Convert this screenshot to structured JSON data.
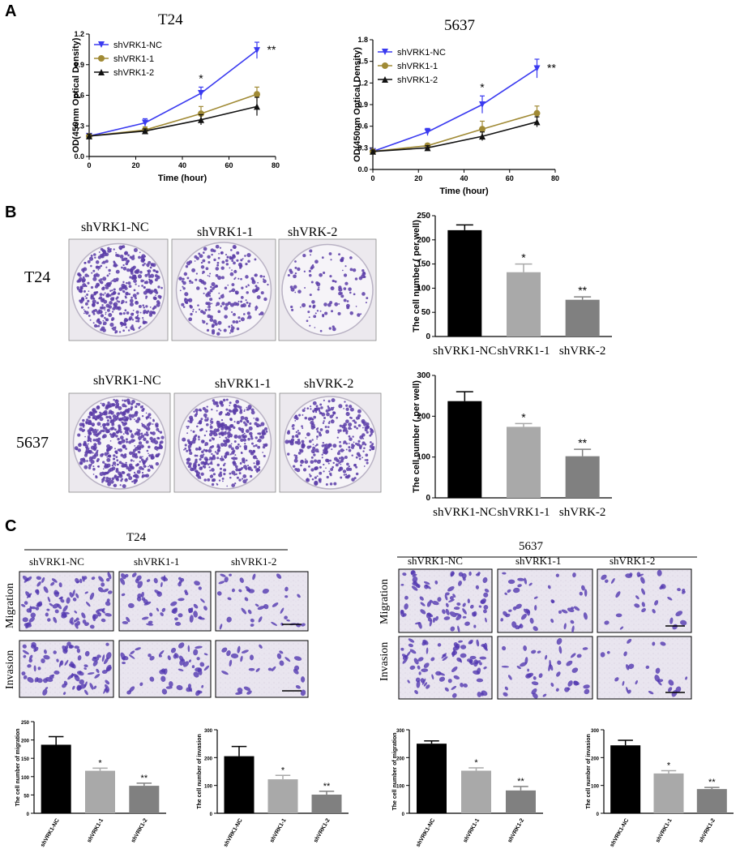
{
  "panels": {
    "a": {
      "letter": "A"
    },
    "b": {
      "letter": "B",
      "row_labels": [
        "T24",
        "5637"
      ],
      "image_labels": [
        [
          "shVRK1-NC",
          "shVRK1-1",
          "shVRK-2"
        ],
        [
          "shVRK1-NC",
          "shVRK1-1",
          "shVRK-2"
        ]
      ]
    },
    "c": {
      "letter": "C",
      "groups": [
        "T24",
        "5637"
      ],
      "image_labels": [
        "shVRK1-NC",
        "shVRK1-1",
        "shVRK1-2"
      ],
      "row_labels": [
        "Migration",
        "Invasion"
      ]
    }
  },
  "colors": {
    "nc": "#3a3af0",
    "sh1": "#a08a35",
    "sh2": "#111111",
    "bar_black": "#000000",
    "bar_light": "#a9a9a9",
    "bar_dark": "#808080",
    "crystal_violet": "#5a3ca8"
  },
  "chart_data": [
    {
      "id": "lineT24",
      "type": "line",
      "title": "T24",
      "xlabel": "Time (hour)",
      "ylabel": "OD(450nm Optical Density)",
      "xlim": [
        0,
        80
      ],
      "ylim": [
        0,
        1.2
      ],
      "xticks": [
        0,
        20,
        40,
        60,
        80
      ],
      "yticks": [
        0.0,
        0.3,
        0.6,
        0.9,
        1.2
      ],
      "yticklabels": [
        "0.0",
        "0.3",
        "0.6",
        "0.9",
        "1.2"
      ],
      "x": [
        0,
        24,
        48,
        72
      ],
      "legend_position": "top-left",
      "series": [
        {
          "name": "shVRK1-NC",
          "marker": "triangle-down",
          "color": "#3a3af0",
          "values": [
            0.2,
            0.33,
            0.62,
            1.04
          ],
          "errors": [
            0.02,
            0.04,
            0.06,
            0.08
          ]
        },
        {
          "name": "shVRK1-1",
          "marker": "circle",
          "color": "#a08a35",
          "values": [
            0.2,
            0.26,
            0.42,
            0.61
          ],
          "errors": [
            0.02,
            0.03,
            0.07,
            0.07
          ]
        },
        {
          "name": "shVRK1-2",
          "marker": "triangle-up",
          "color": "#111111",
          "values": [
            0.2,
            0.25,
            0.36,
            0.49
          ],
          "errors": [
            0.02,
            0.02,
            0.05,
            0.09
          ]
        }
      ],
      "annotations": [
        {
          "x": 48,
          "text": "*"
        },
        {
          "x": 72,
          "text": "**"
        }
      ]
    },
    {
      "id": "line5637",
      "type": "line",
      "title": "5637",
      "xlabel": "Time (hour)",
      "ylabel": "OD(450nm Optical Density)",
      "xlim": [
        0,
        80
      ],
      "ylim": [
        0,
        1.8
      ],
      "xticks": [
        0,
        20,
        40,
        60,
        80
      ],
      "yticks": [
        0.0,
        0.3,
        0.6,
        0.9,
        1.2,
        1.5,
        1.8
      ],
      "yticklabels": [
        "0.0",
        "0.3",
        "0.6",
        "0.9",
        "1.2",
        "1.5",
        "1.8"
      ],
      "x": [
        0,
        24,
        48,
        72
      ],
      "legend_position": "top-left",
      "series": [
        {
          "name": "shVRK1-NC",
          "marker": "triangle-down",
          "color": "#3a3af0",
          "values": [
            0.25,
            0.52,
            0.9,
            1.4
          ],
          "errors": [
            0.02,
            0.05,
            0.12,
            0.13
          ]
        },
        {
          "name": "shVRK1-1",
          "marker": "circle",
          "color": "#a08a35",
          "values": [
            0.25,
            0.33,
            0.56,
            0.78
          ],
          "errors": [
            0.02,
            0.03,
            0.11,
            0.1
          ]
        },
        {
          "name": "shVRK1-2",
          "marker": "triangle-up",
          "color": "#111111",
          "values": [
            0.25,
            0.3,
            0.46,
            0.66
          ],
          "errors": [
            0.02,
            0.03,
            0.06,
            0.07
          ]
        }
      ],
      "annotations": [
        {
          "x": 48,
          "text": "*"
        },
        {
          "x": 72,
          "text": "**"
        }
      ]
    },
    {
      "id": "barBT24",
      "type": "bar",
      "ylabel": "The cell number ( per well)",
      "ylim": [
        0,
        250
      ],
      "yticks": [
        0,
        50,
        100,
        150,
        200,
        250
      ],
      "categories": [
        "shVRK1-NC",
        "shVRK1-1",
        "shVRK-2"
      ],
      "values": [
        220,
        133,
        76
      ],
      "errors": [
        11,
        17,
        6
      ],
      "sig": [
        "",
        "*",
        "**"
      ],
      "colors": [
        "#000000",
        "#a9a9a9",
        "#808080"
      ]
    },
    {
      "id": "barB5637",
      "type": "bar",
      "ylabel": "The cell number ( per well)",
      "ylim": [
        0,
        300
      ],
      "yticks": [
        0,
        100,
        200,
        300
      ],
      "categories": [
        "shVRK1-NC",
        "shVRK1-1",
        "shVRK-2"
      ],
      "values": [
        237,
        174,
        102
      ],
      "errors": [
        23,
        8,
        17
      ],
      "sig": [
        "",
        "*",
        "**"
      ],
      "colors": [
        "#000000",
        "#a9a9a9",
        "#808080"
      ]
    },
    {
      "id": "barCT24mig",
      "type": "bar",
      "ylabel": "The cell number of migration",
      "ylim": [
        0,
        250
      ],
      "yticks": [
        0,
        50,
        100,
        150,
        200,
        250
      ],
      "categories": [
        "shVRK1-NC",
        "shVRK1-1",
        "shVRK1-2"
      ],
      "values": [
        187,
        116,
        75
      ],
      "errors": [
        22,
        7,
        7
      ],
      "sig": [
        "",
        "*",
        "**"
      ],
      "colors": [
        "#000000",
        "#a9a9a9",
        "#808080"
      ]
    },
    {
      "id": "barCT24inv",
      "type": "bar",
      "ylabel": "The cell number of invasion",
      "ylim": [
        0,
        300
      ],
      "yticks": [
        0,
        100,
        200,
        300
      ],
      "categories": [
        "shVRK1-NC",
        "shVRK1-1",
        "shVRK1-2"
      ],
      "values": [
        205,
        122,
        67
      ],
      "errors": [
        35,
        14,
        12
      ],
      "sig": [
        "",
        "*",
        "**"
      ],
      "colors": [
        "#000000",
        "#a9a9a9",
        "#808080"
      ]
    },
    {
      "id": "barC5637mig",
      "type": "bar",
      "ylabel": "The cell number of migration",
      "ylim": [
        0,
        300
      ],
      "yticks": [
        0,
        100,
        200,
        300
      ],
      "categories": [
        "shVRK1-NC",
        "shVRK1-1",
        "shVRK1-2"
      ],
      "values": [
        250,
        153,
        82
      ],
      "errors": [
        10,
        10,
        14
      ],
      "sig": [
        "",
        "*",
        "**"
      ],
      "colors": [
        "#000000",
        "#a9a9a9",
        "#808080"
      ]
    },
    {
      "id": "barC5637inv",
      "type": "bar",
      "ylabel": "The cell number of invasion",
      "ylim": [
        0,
        300
      ],
      "yticks": [
        0,
        100,
        200,
        300
      ],
      "categories": [
        "shVRK1-NC",
        "shVRK1-1",
        "shVRK1-2"
      ],
      "values": [
        244,
        143,
        87
      ],
      "errors": [
        18,
        10,
        6
      ],
      "sig": [
        "",
        "*",
        "**"
      ],
      "colors": [
        "#000000",
        "#a9a9a9",
        "#808080"
      ]
    }
  ]
}
